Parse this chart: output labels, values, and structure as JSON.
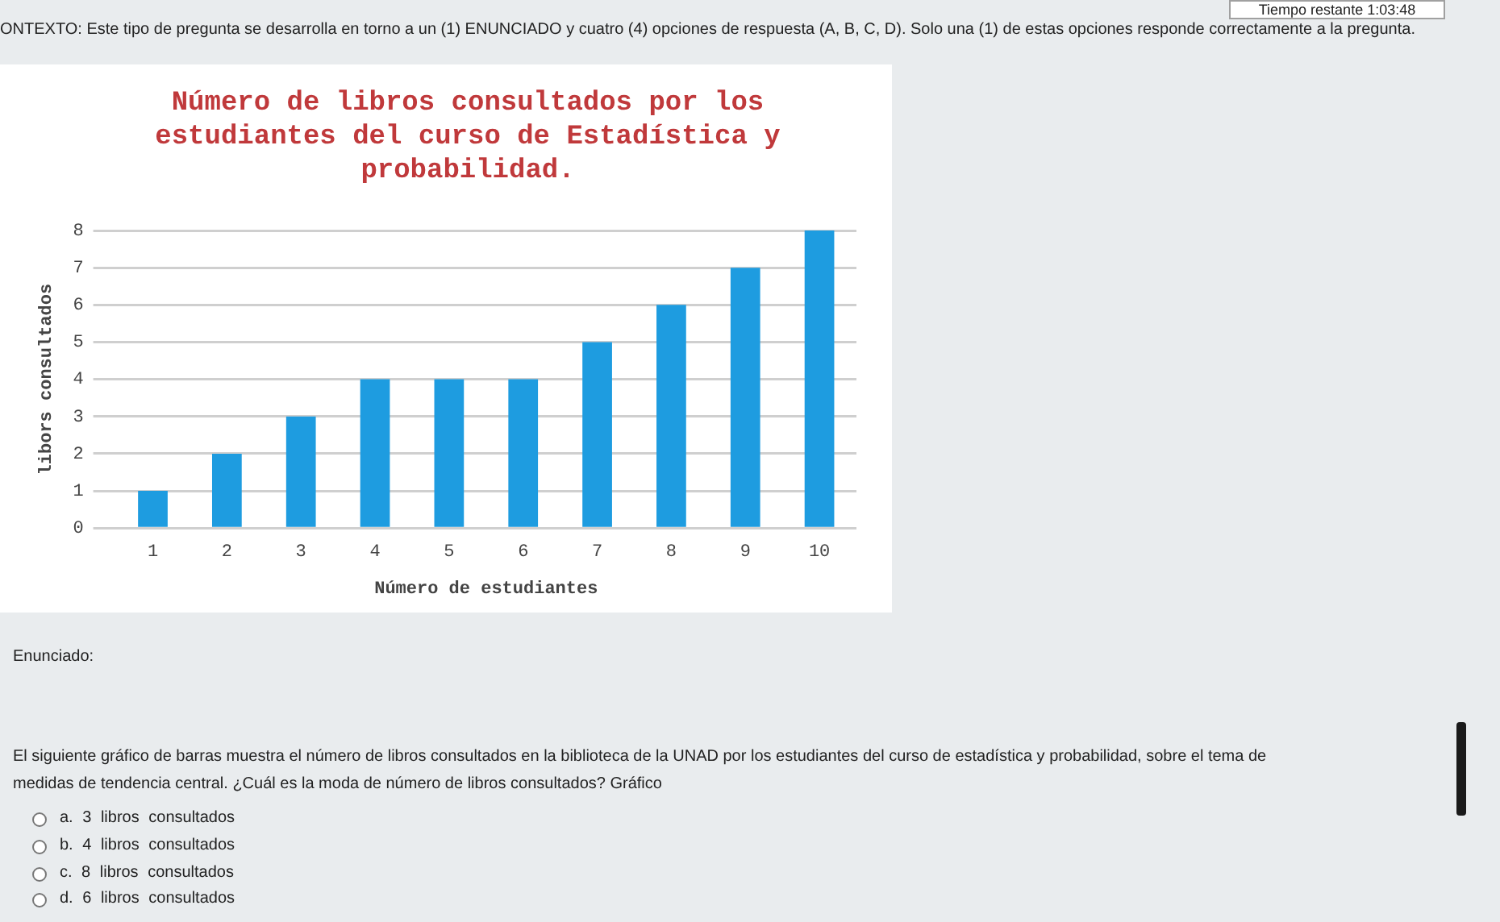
{
  "chart_data": {
    "type": "bar",
    "title": "Número de libros consultados por los estudiantes del curso de Estadística y probabilidad.",
    "xlabel": "Número de estudiantes",
    "ylabel": "libors consultados",
    "categories": [
      "1",
      "2",
      "3",
      "4",
      "5",
      "6",
      "7",
      "8",
      "9",
      "10"
    ],
    "values": [
      1,
      2,
      3,
      4,
      4,
      4,
      5,
      6,
      7,
      8
    ],
    "color": "#1e9ce0",
    "ylim": [
      0,
      8
    ],
    "yticks": [
      0,
      1,
      2,
      3,
      4,
      5,
      6,
      7,
      8
    ],
    "grid": "y",
    "annotations": [
      "Tiempo restante 1:03:48",
      "ONTEXTO: Este tipo de pregunta se desarrolla en torno a un (1) ENUNCIADO y cuatro (4) opciones de respuesta (A, B, C, D). Solo una (1) de estas opciones responde correctamente a la pregunta.",
      "Enunciado:",
      "El siguiente gráfico de barras muestra el número de libros consultados en la biblioteca de la UNAD por los estudiantes del curso de estadística y probabilidad, sobre el tema de medidas de tendencia central. ¿Cuál es la moda de número de libros consultados? Gráfico",
      "a. 3 libros consultados",
      "b. 4 libros consultados",
      "c. 8 libros consultados",
      "d. 6 libros consultados"
    ]
  }
}
